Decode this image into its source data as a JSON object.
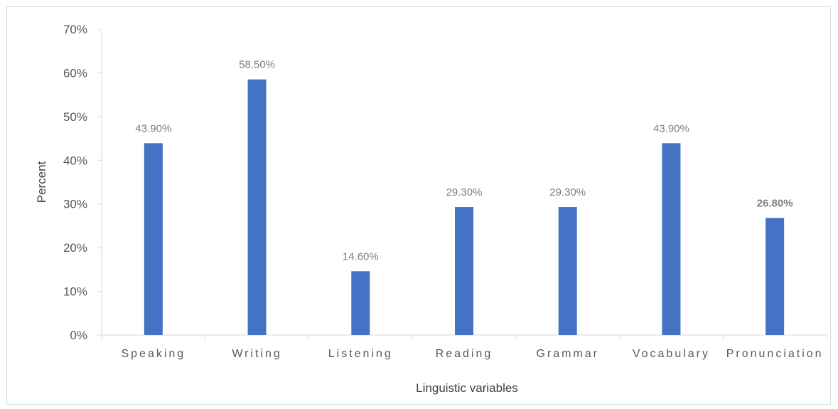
{
  "chart_data": {
    "type": "bar",
    "categories": [
      "Speaking",
      "Writing",
      "Listening",
      "Reading",
      "Grammar",
      "Vocabulary",
      "Pronunciation"
    ],
    "values": [
      43.9,
      58.5,
      14.6,
      29.3,
      29.3,
      43.9,
      26.8
    ],
    "data_labels": [
      "43.90%",
      "58.50%",
      "14.60%",
      "29.30%",
      "29.30%",
      "43.90%",
      "26.80%"
    ],
    "bold_labels": [
      false,
      false,
      false,
      false,
      false,
      false,
      true
    ],
    "y_ticks": [
      "0%",
      "10%",
      "20%",
      "30%",
      "40%",
      "50%",
      "60%",
      "70%"
    ],
    "ylim": [
      0,
      70
    ],
    "xlabel": "Linguistic variables",
    "ylabel": "Percent",
    "bar_color": "#4472c4",
    "grid": false,
    "legend": "none"
  }
}
